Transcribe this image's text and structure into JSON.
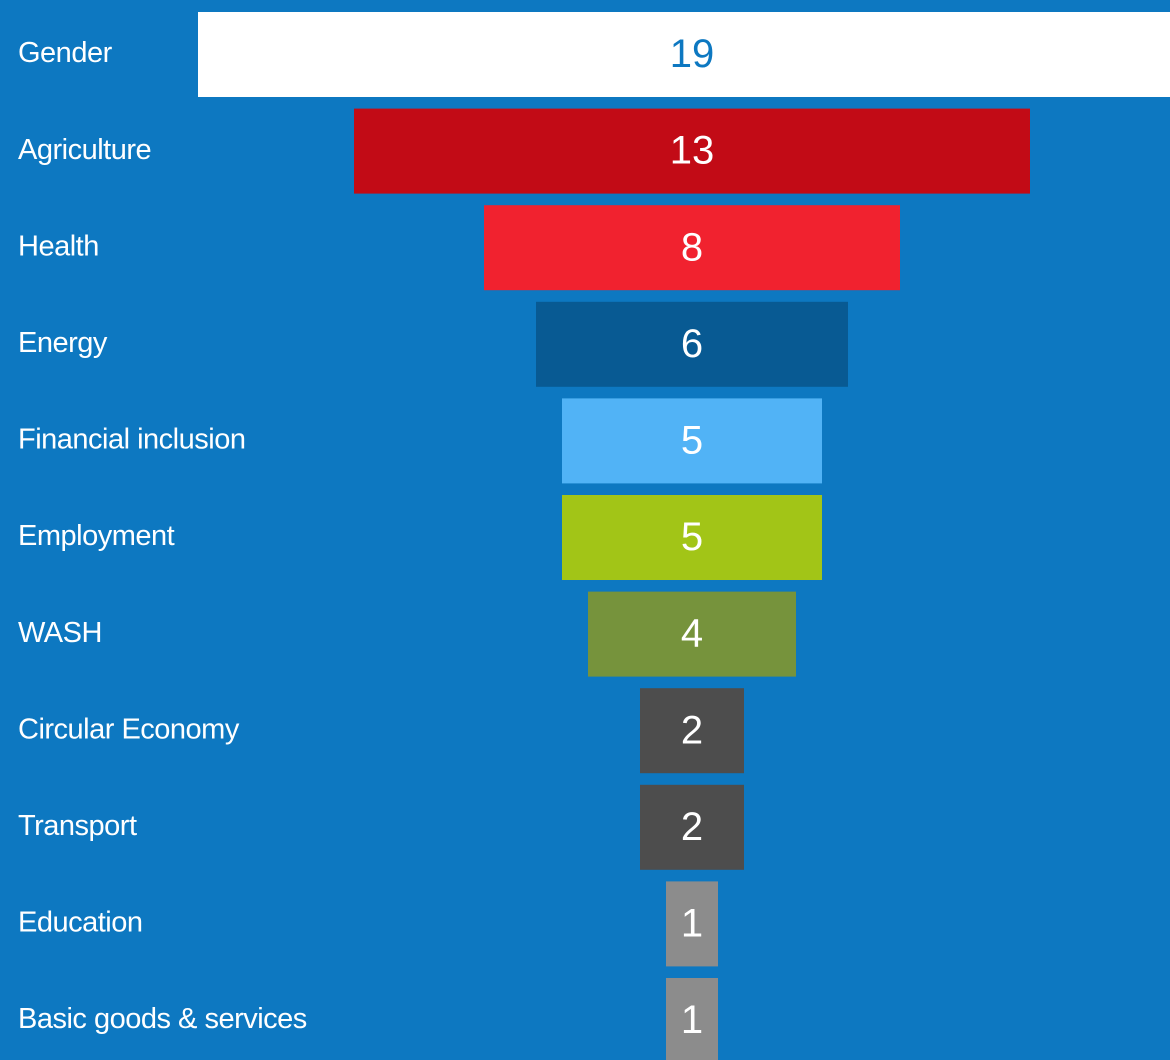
{
  "chart_data": {
    "type": "funnel",
    "categories": [
      "Gender",
      "Agriculture",
      "Health",
      "Energy",
      "Financial inclusion",
      "Employment",
      "WASH",
      "Circular Economy",
      "Transport",
      "Education",
      "Basic goods & services"
    ],
    "values": [
      19,
      13,
      8,
      6,
      5,
      5,
      4,
      2,
      2,
      1,
      1
    ],
    "colors": [
      "#ffffff",
      "#c20b16",
      "#f1222f",
      "#085a93",
      "#51b3f6",
      "#a2c517",
      "#76933c",
      "#4d4d4d",
      "#4d4d4d",
      "#8c8c8c",
      "#8c8c8c"
    ],
    "value_label_colors": [
      "#0d78c1",
      "#ffffff",
      "#ffffff",
      "#ffffff",
      "#ffffff",
      "#ffffff",
      "#ffffff",
      "#ffffff",
      "#ffffff",
      "#ffffff",
      "#ffffff"
    ],
    "background": "#0d78c1"
  }
}
